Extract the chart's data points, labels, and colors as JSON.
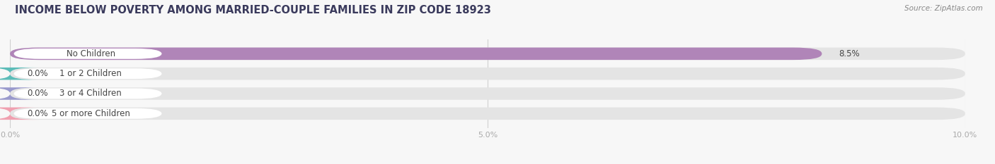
{
  "title": "INCOME BELOW POVERTY AMONG MARRIED-COUPLE FAMILIES IN ZIP CODE 18923",
  "source": "Source: ZipAtlas.com",
  "categories": [
    "No Children",
    "1 or 2 Children",
    "3 or 4 Children",
    "5 or more Children"
  ],
  "values": [
    8.5,
    0.0,
    0.0,
    0.0
  ],
  "bar_colors": [
    "#b085b8",
    "#5bbcb8",
    "#9999cc",
    "#f0a0b0"
  ],
  "xlim": [
    0,
    10.0
  ],
  "xticks": [
    0.0,
    5.0,
    10.0
  ],
  "xtick_labels": [
    "0.0%",
    "5.0%",
    "10.0%"
  ],
  "bar_height": 0.62,
  "background_color": "#f7f7f7",
  "bar_bg_color": "#e4e4e4",
  "label_bg_color": "#ffffff",
  "value_label_fontsize": 8.5,
  "category_fontsize": 8.5,
  "title_fontsize": 10.5,
  "title_color": "#3a3a5c",
  "source_color": "#888888",
  "tick_color": "#aaaaaa",
  "text_color": "#444444"
}
